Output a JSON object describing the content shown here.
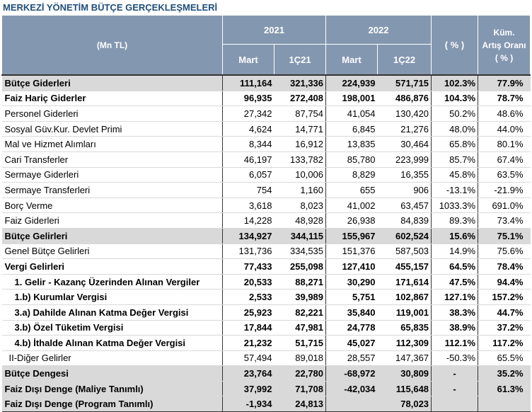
{
  "title": "MERKEZİ YÖNETİM BÜTÇE GERÇEKLEŞMELERİ",
  "header": {
    "unit": "(Mn TL)",
    "year1": "2021",
    "year2": "2022",
    "pct": "( % )",
    "cum1": "Küm.",
    "cum2": "Artış Oranı",
    "cum3": "( % )",
    "sub": [
      "Mart",
      "1Ç21",
      "Mart",
      "1Ç22"
    ]
  },
  "rows": [
    {
      "label": "Bütçe Giderleri",
      "m21": "111,164",
      "q21": "321,336",
      "m22": "224,939",
      "q22": "571,715",
      "pct": "102.3%",
      "cum": "77.9%"
    },
    {
      "label": "Faiz Hariç Giderler",
      "m21": "96,935",
      "q21": "272,408",
      "m22": "198,001",
      "q22": "486,876",
      "pct": "104.3%",
      "cum": "78.7%"
    },
    {
      "label": "Personel Giderleri",
      "m21": "27,342",
      "q21": "87,754",
      "m22": "41,054",
      "q22": "130,420",
      "pct": "50.2%",
      "cum": "48.6%"
    },
    {
      "label": "Sosyal Güv.Kur. Devlet Primi",
      "m21": "4,624",
      "q21": "14,771",
      "m22": "6,845",
      "q22": "21,276",
      "pct": "48.0%",
      "cum": "44.0%"
    },
    {
      "label": "Mal ve Hizmet Alımları",
      "m21": "8,344",
      "q21": "16,912",
      "m22": "13,835",
      "q22": "30,464",
      "pct": "65.8%",
      "cum": "80.1%"
    },
    {
      "label": "Cari Transferler",
      "m21": "46,197",
      "q21": "133,782",
      "m22": "85,780",
      "q22": "223,999",
      "pct": "85.7%",
      "cum": "67.4%"
    },
    {
      "label": "Sermaye Giderleri",
      "m21": "6,057",
      "q21": "10,006",
      "m22": "8,829",
      "q22": "16,355",
      "pct": "45.8%",
      "cum": "63.5%"
    },
    {
      "label": "Sermaye Transferleri",
      "m21": "754",
      "q21": "1,160",
      "m22": "655",
      "q22": "906",
      "pct": "-13.1%",
      "cum": "-21.9%"
    },
    {
      "label": "Borç Verme",
      "m21": "3,618",
      "q21": "8,023",
      "m22": "41,002",
      "q22": "63,457",
      "pct": "1033.3%",
      "cum": "691.0%"
    },
    {
      "label": "Faiz Giderleri",
      "m21": "14,228",
      "q21": "48,928",
      "m22": "26,938",
      "q22": "84,839",
      "pct": "89.3%",
      "cum": "73.4%"
    },
    {
      "label": "Bütçe Gelirleri",
      "m21": "134,927",
      "q21": "344,115",
      "m22": "155,967",
      "q22": "602,524",
      "pct": "15.6%",
      "cum": "75.1%"
    },
    {
      "label": "Genel Bütçe Gelirleri",
      "m21": "131,736",
      "q21": "334,535",
      "m22": "151,376",
      "q22": "587,503",
      "pct": "14.9%",
      "cum": "75.6%"
    },
    {
      "label": "Vergi Gelirleri",
      "m21": "77,433",
      "q21": "255,098",
      "m22": "127,410",
      "q22": "455,157",
      "pct": "64.5%",
      "cum": "78.4%"
    },
    {
      "label": "1. Gelir - Kazanç Üzerinden Alınan Vergiler",
      "m21": "20,533",
      "q21": "88,271",
      "m22": "30,290",
      "q22": "171,614",
      "pct": "47.5%",
      "cum": "94.4%"
    },
    {
      "label": "1.b) Kurumlar Vergisi",
      "m21": "2,533",
      "q21": "39,989",
      "m22": "5,751",
      "q22": "102,867",
      "pct": "127.1%",
      "cum": "157.2%"
    },
    {
      "label": "3.a) Dahilde Alınan Katma Değer Vergisi",
      "m21": "25,923",
      "q21": "82,221",
      "m22": "35,840",
      "q22": "119,001",
      "pct": "38.3%",
      "cum": "44.7%"
    },
    {
      "label": "3.b) Özel Tüketim Vergisi",
      "m21": "17,844",
      "q21": "47,981",
      "m22": "24,778",
      "q22": "65,835",
      "pct": "38.9%",
      "cum": "37.2%"
    },
    {
      "label": "4.b) İthalde Alınan Katma Değer Vergisi",
      "m21": "21,232",
      "q21": "51,715",
      "m22": "45,027",
      "q22": "112,309",
      "pct": "112.1%",
      "cum": "117.2%"
    },
    {
      "label": "II-Diğer Gelirler",
      "m21": "57,494",
      "q21": "89,018",
      "m22": "28,557",
      "q22": "147,367",
      "pct": "-50.3%",
      "cum": "65.5%"
    },
    {
      "label": "Bütçe Dengesi",
      "m21": "23,764",
      "q21": "22,780",
      "m22": "-68,972",
      "q22": "30,809",
      "pct": "-",
      "cum": "35.2%"
    },
    {
      "label": "Faiz Dışı Denge (Maliye Tanımlı)",
      "m21": "37,992",
      "q21": "71,708",
      "m22": "-42,034",
      "q22": "115,648",
      "pct": "-",
      "cum": "61.3%"
    },
    {
      "label": "Faiz Dışı Denge (Program Tanımlı)",
      "m21": "-1,934",
      "q21": "24,813",
      "m22": "",
      "q22": "78,023",
      "pct": "",
      "cum": ""
    }
  ]
}
